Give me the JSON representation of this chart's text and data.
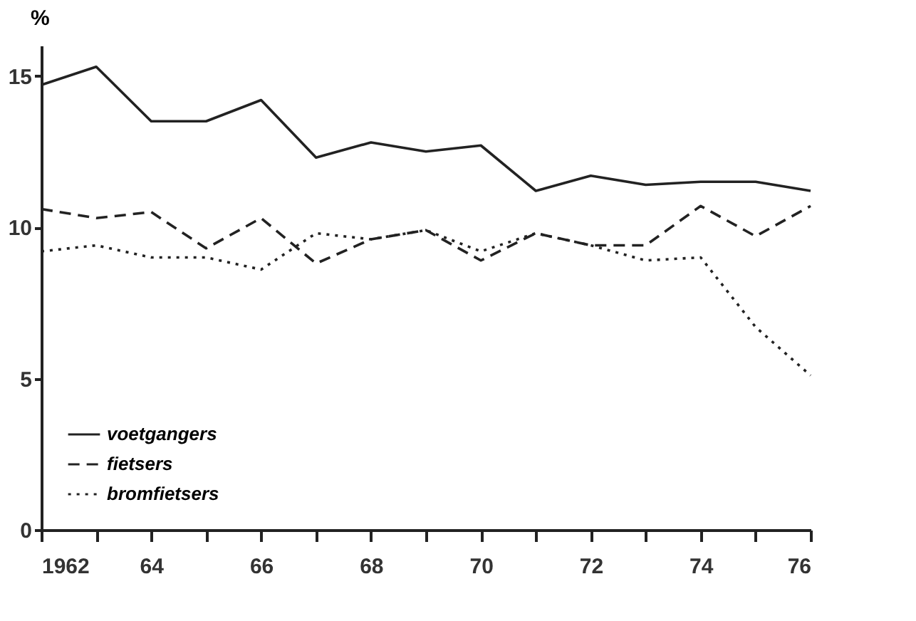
{
  "chart_data": {
    "type": "line",
    "ylabel": "%",
    "x": [
      1962,
      1963,
      1964,
      1965,
      1966,
      1967,
      1968,
      1969,
      1970,
      1971,
      1972,
      1973,
      1974,
      1975,
      1976
    ],
    "series": [
      {
        "name": "voetgangers",
        "color": "#222222",
        "line_style": "solid",
        "values": [
          14.7,
          15.3,
          13.5,
          13.5,
          14.2,
          12.3,
          12.8,
          12.5,
          12.7,
          11.2,
          11.7,
          11.4,
          11.5,
          11.5,
          11.2
        ]
      },
      {
        "name": "fietsers",
        "color": "#222222",
        "line_style": "dashed",
        "values": [
          10.6,
          10.3,
          10.5,
          9.3,
          10.3,
          8.8,
          9.6,
          9.9,
          8.9,
          9.8,
          9.4,
          9.4,
          10.7,
          9.7,
          10.7
        ]
      },
      {
        "name": "bromfietsers",
        "color": "#222222",
        "line_style": "dotted",
        "values": [
          9.2,
          9.4,
          9.0,
          9.0,
          8.6,
          9.8,
          9.6,
          9.9,
          9.2,
          9.8,
          9.4,
          8.9,
          9.0,
          6.7,
          5.1
        ]
      }
    ],
    "xlim": [
      1962,
      1976
    ],
    "xticks": [
      {
        "value": 1962,
        "label": "1962"
      },
      {
        "value": 1963,
        "label": null
      },
      {
        "value": 1964,
        "label": "64"
      },
      {
        "value": 1965,
        "label": null
      },
      {
        "value": 1966,
        "label": "66"
      },
      {
        "value": 1967,
        "label": null
      },
      {
        "value": 1968,
        "label": "68"
      },
      {
        "value": 1969,
        "label": null
      },
      {
        "value": 1970,
        "label": "70"
      },
      {
        "value": 1971,
        "label": null
      },
      {
        "value": 1972,
        "label": "72"
      },
      {
        "value": 1973,
        "label": null
      },
      {
        "value": 1974,
        "label": "74"
      },
      {
        "value": 1975,
        "label": null
      },
      {
        "value": 1976,
        "label": "76"
      }
    ],
    "ylim": [
      0,
      16
    ],
    "yticks": [
      0,
      5,
      10,
      15
    ],
    "grid": false,
    "legend": "bottom left",
    "marker": "none"
  }
}
